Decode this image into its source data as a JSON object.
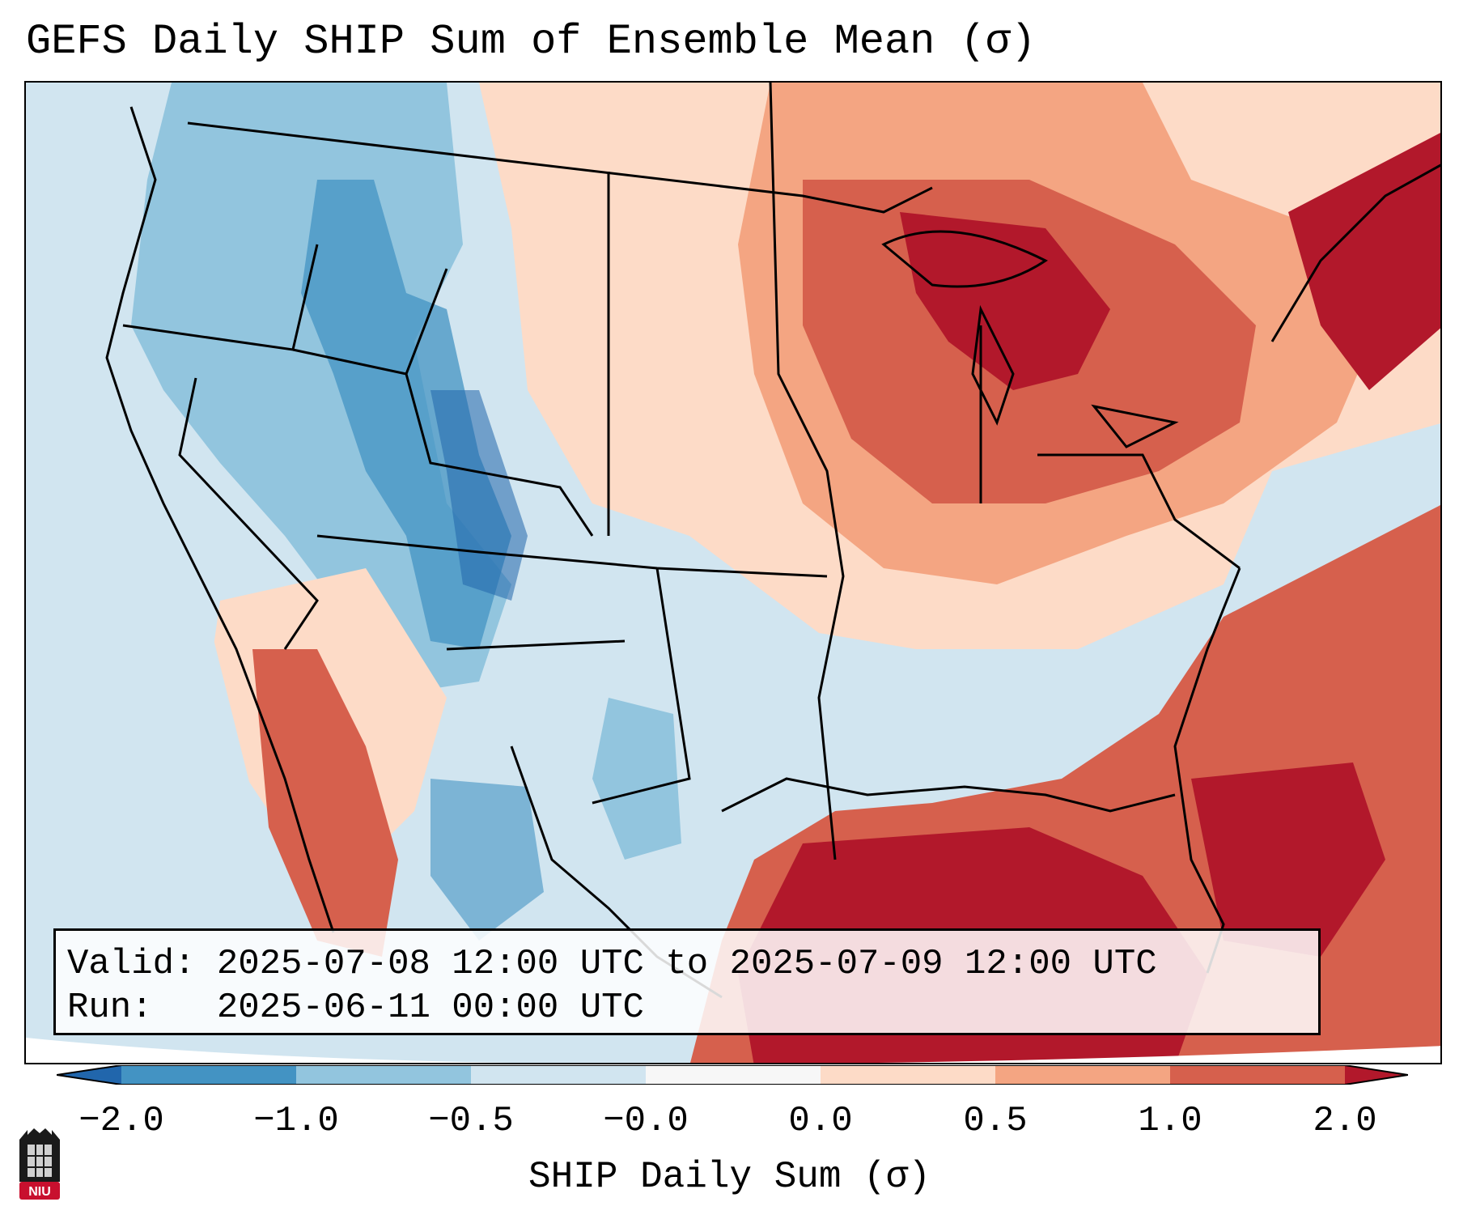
{
  "title": "GEFS Daily SHIP Sum of Ensemble Mean (σ)",
  "info": {
    "valid_label": "Valid:",
    "valid_value": "2025-07-08 12:00 UTC to 2025-07-09 12:00 UTC",
    "run_label": "Run:",
    "run_value": "2025-06-11 00:00 UTC"
  },
  "colorbar": {
    "label": "SHIP Daily Sum (σ)",
    "ticks": [
      "−2.0",
      "−1.0",
      "−0.5",
      "−0.0",
      "0.0",
      "0.5",
      "1.0",
      "2.0"
    ],
    "colors": [
      "#2166ac",
      "#4393c3",
      "#92c5de",
      "#d1e5f0",
      "#f7f7f7",
      "#fddbc7",
      "#f4a582",
      "#d6604d",
      "#b2182b"
    ]
  },
  "logo": {
    "text": "NIU"
  },
  "map_regions": {
    "west_coast_ocean": "light-blue",
    "northern_rockies": "blue",
    "gulf_of_mexico": "dark-red",
    "great_lakes": "dark-red",
    "atlantic": "red"
  }
}
